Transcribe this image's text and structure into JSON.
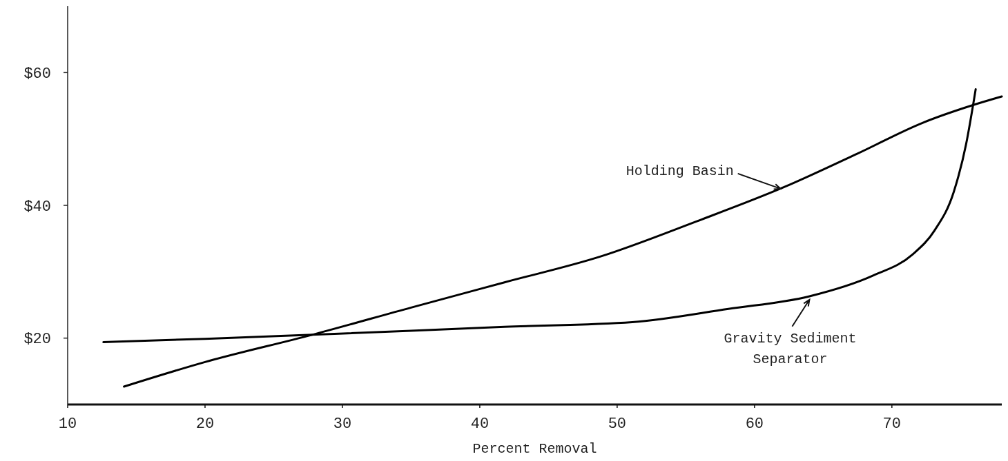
{
  "chart_data": {
    "type": "line",
    "xlabel": "Percent Removal",
    "xlim": [
      10,
      78
    ],
    "ylim": [
      10,
      70
    ],
    "xticks": [
      10,
      20,
      30,
      40,
      50,
      60,
      70
    ],
    "yticks": [
      {
        "value": 20,
        "label": "$20"
      },
      {
        "value": 40,
        "label": "$40"
      },
      {
        "value": 60,
        "label": "$60"
      }
    ],
    "grid": false,
    "marker": "none",
    "line_style": "solid",
    "series": [
      {
        "color": "#000000",
        "x": [
          14.1,
          20,
          27.8,
          35,
          41.8,
          48.8,
          55.8,
          62.1,
          67.5,
          72.2,
          75.9,
          78
        ],
        "values": [
          12.7,
          16.4,
          20.5,
          24.6,
          28.4,
          32.3,
          37.6,
          42.7,
          47.8,
          52.4,
          55.1,
          56.4
        ]
      },
      {
        "color": "#000000",
        "x": [
          12.6,
          20,
          27.8,
          35,
          41.8,
          51.1,
          58.1,
          64.0,
          68.6,
          71.5,
          73.1,
          74.5,
          75.4,
          76.1
        ],
        "values": [
          19.4,
          19.9,
          20.5,
          21.1,
          21.7,
          22.4,
          24.4,
          26.3,
          29.4,
          32.6,
          36.2,
          42.0,
          49.2,
          57.5
        ]
      }
    ],
    "annotations": [
      {
        "text": "Holding Basin",
        "x": 61.9,
        "y": 42.5
      },
      {
        "text": "Gravity Sediment\nSeparator",
        "x": 64.0,
        "y": 25.8
      }
    ]
  }
}
